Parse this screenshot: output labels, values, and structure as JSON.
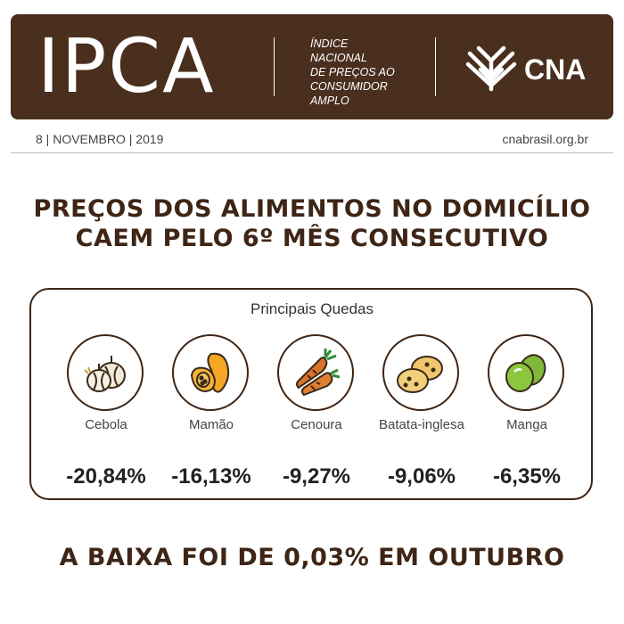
{
  "header": {
    "title": "IPCA",
    "subtitle_lines": [
      "ÍNDICE",
      "NACIONAL",
      "DE PREÇOS AO",
      "CONSUMIDOR",
      "AMPLO"
    ],
    "brand": "CNA",
    "brand_icon": "cna-wheat-logo",
    "background_color": "#4a2f1f"
  },
  "meta": {
    "date": "8 | NOVEMBRO | 2019",
    "website": "cnabrasil.org.br"
  },
  "headline": {
    "line1": "PREÇOS DOS ALIMENTOS NO DOMICÍLIO",
    "line2": "CAEM PELO 6º MÊS CONSECUTIVO"
  },
  "panel": {
    "title": "Principais Quedas",
    "items": [
      {
        "name": "Cebola",
        "value": "-20,84%",
        "icon": "onion-icon"
      },
      {
        "name": "Mamão",
        "value": "-16,13%",
        "icon": "papaya-icon"
      },
      {
        "name": "Cenoura",
        "value": "-9,27%",
        "icon": "carrot-icon"
      },
      {
        "name": "Batata-inglesa",
        "value": "-9,06%",
        "icon": "potato-icon"
      },
      {
        "name": "Manga",
        "value": "-6,35%",
        "icon": "mango-icon"
      }
    ]
  },
  "footer": {
    "text": "A BAIXA FOI DE 0,03% EM OUTUBRO"
  },
  "colors": {
    "brand_brown": "#4a2f1f",
    "text_brown": "#3e2515"
  }
}
